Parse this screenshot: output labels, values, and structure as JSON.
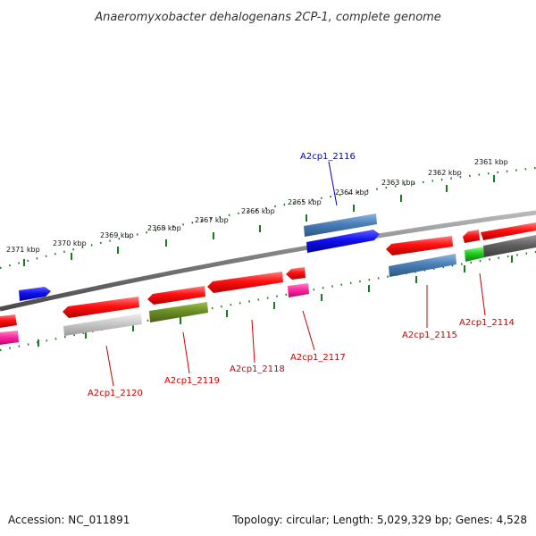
{
  "title": "Anaeromyxobacter dehalogenans 2CP-1, complete genome",
  "footer": {
    "accession": "Accession: NC_011891",
    "summary": "Topology: circular; Length: 5,029,329 bp; Genes: 4,528"
  },
  "ticks": [
    "2371 kbp",
    "2370 kbp",
    "2369 kbp",
    "2368 kbp",
    "2367 kbp",
    "2366 kbp",
    "2365 kbp",
    "2364 kbp",
    "2363 kbp",
    "2362 kbp",
    "2361 kbp"
  ],
  "gene_labels": [
    "A2cp1_2116",
    "A2cp1_2120",
    "A2cp1_2119",
    "A2cp1_2118",
    "A2cp1_2117",
    "A2cp1_2115",
    "A2cp1_2114"
  ],
  "colors": {
    "backbone": "#7a7a7a",
    "tick": "#1b7a1b",
    "red": "#ff0a0a",
    "blue": "#1010ee",
    "steelblue": "#4a7fb8",
    "olive": "#6b8e23",
    "magenta": "#ff2aa0",
    "lightgray": "#c8c8c8",
    "darkgray": "#606060",
    "green": "#22cc22",
    "label_red": "#cc0000",
    "label_blue": "#0000cc"
  }
}
